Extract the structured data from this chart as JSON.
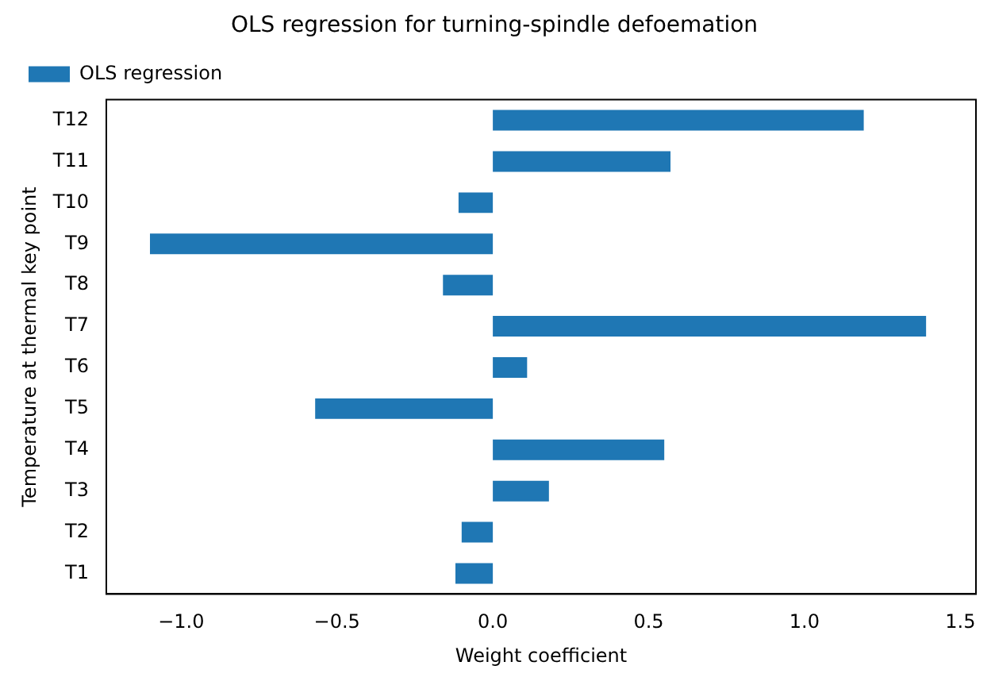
{
  "chart_data": {
    "type": "bar",
    "orientation": "horizontal",
    "title": "OLS regression for turning-spindle defoemation",
    "xlabel": "Weight coefficient",
    "ylabel": "Temperature at thermal key point",
    "categories": [
      "T12",
      "T11",
      "T10",
      "T9",
      "T8",
      "T7",
      "T6",
      "T5",
      "T4",
      "T3",
      "T2",
      "T1"
    ],
    "series": [
      {
        "name": "OLS regression",
        "color": "#1f77b4",
        "values": [
          1.19,
          0.57,
          -0.11,
          -1.1,
          -0.16,
          1.39,
          0.11,
          -0.57,
          0.55,
          0.18,
          -0.1,
          -0.12
        ]
      }
    ],
    "xlim": [
      -1.24,
      1.55
    ],
    "xticks": [
      {
        "value": -1,
        "label": "−1.0"
      },
      {
        "value": -0.5,
        "label": "−0.5"
      },
      {
        "value": 0,
        "label": "0.0"
      },
      {
        "value": 0.5,
        "label": "0.5"
      },
      {
        "value": 1,
        "label": "1.0"
      },
      {
        "value": 1.5,
        "label": "1.5"
      }
    ],
    "grid": false,
    "legend": "top left"
  }
}
